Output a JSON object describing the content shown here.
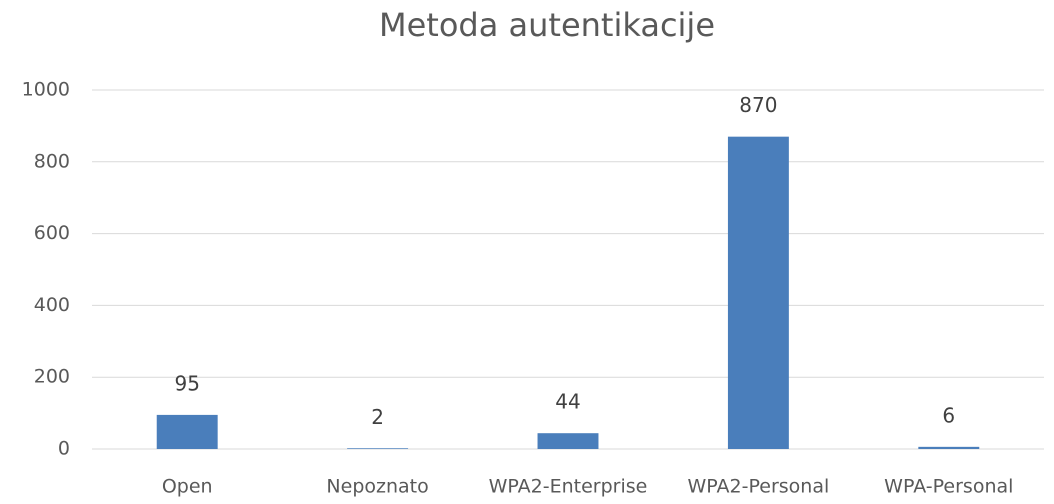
{
  "chart_data": {
    "type": "bar",
    "title": "Metoda autentikacije",
    "categories": [
      "Open",
      "Nepoznato",
      "WPA2-Enterprise",
      "WPA2-Personal",
      "WPA-Personal"
    ],
    "values": [
      95,
      2,
      44,
      870,
      6
    ],
    "color": "#4a7ebb",
    "ylim": [
      0,
      1000
    ],
    "yticks": [
      0,
      200,
      400,
      600,
      800,
      1000
    ],
    "grid": true
  }
}
